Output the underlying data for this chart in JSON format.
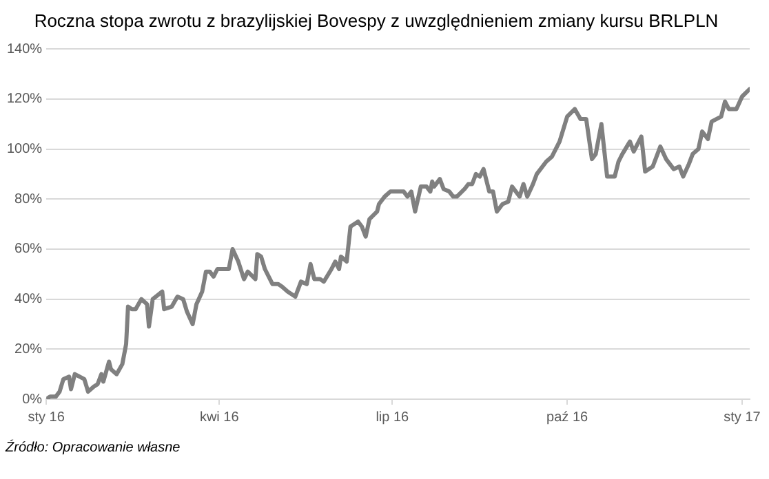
{
  "chart_data": {
    "type": "line",
    "title": "Roczna stopa zwrotu z brazylijskiej Bovespy z uwzględnieniem zmiany kursu BRLPLN",
    "x": [
      "2016-01-01",
      "2016-01-03",
      "2016-01-06",
      "2016-01-08",
      "2016-01-10",
      "2016-01-13",
      "2016-01-14",
      "2016-01-16",
      "2016-01-21",
      "2016-01-23",
      "2016-01-26",
      "2016-01-28",
      "2016-01-30",
      "2016-01-31",
      "2016-02-03",
      "2016-02-04",
      "2016-02-07",
      "2016-02-10",
      "2016-02-12",
      "2016-02-13",
      "2016-02-15",
      "2016-02-17",
      "2016-02-20",
      "2016-02-23",
      "2016-02-24",
      "2016-02-26",
      "2016-03-02",
      "2016-03-03",
      "2016-03-07",
      "2016-03-10",
      "2016-03-13",
      "2016-03-15",
      "2016-03-18",
      "2016-03-20",
      "2016-03-23",
      "2016-03-25",
      "2016-03-27",
      "2016-03-29",
      "2016-03-31",
      "2016-04-03",
      "2016-04-06",
      "2016-04-08",
      "2016-04-11",
      "2016-04-14",
      "2016-04-16",
      "2016-04-20",
      "2016-04-21",
      "2016-04-23",
      "2016-04-25",
      "2016-04-29",
      "2016-05-02",
      "2016-05-04",
      "2016-05-07",
      "2016-05-11",
      "2016-05-14",
      "2016-05-17",
      "2016-05-19",
      "2016-05-21",
      "2016-05-24",
      "2016-05-26",
      "2016-05-30",
      "2016-06-01",
      "2016-06-03",
      "2016-06-04",
      "2016-06-07",
      "2016-06-09",
      "2016-06-13",
      "2016-06-15",
      "2016-06-17",
      "2016-06-19",
      "2016-06-23",
      "2016-06-24",
      "2016-06-27",
      "2016-06-30",
      "2016-07-04",
      "2016-07-07",
      "2016-07-09",
      "2016-07-11",
      "2016-07-13",
      "2016-07-16",
      "2016-07-19",
      "2016-07-21",
      "2016-07-22",
      "2016-07-23",
      "2016-07-26",
      "2016-07-28",
      "2016-07-31",
      "2016-08-02",
      "2016-08-04",
      "2016-08-08",
      "2016-08-10",
      "2016-08-12",
      "2016-08-14",
      "2016-08-16",
      "2016-08-18",
      "2016-08-21",
      "2016-08-23",
      "2016-08-25",
      "2016-08-28",
      "2016-08-31",
      "2016-09-02",
      "2016-09-06",
      "2016-09-08",
      "2016-09-10",
      "2016-09-13",
      "2016-09-15",
      "2016-09-20",
      "2016-09-23",
      "2016-09-27",
      "2016-10-01",
      "2016-10-05",
      "2016-10-08",
      "2016-10-11",
      "2016-10-14",
      "2016-10-16",
      "2016-10-19",
      "2016-10-22",
      "2016-10-26",
      "2016-10-28",
      "2016-10-30",
      "2016-11-03",
      "2016-11-05",
      "2016-11-09",
      "2016-11-11",
      "2016-11-15",
      "2016-11-19",
      "2016-11-22",
      "2016-11-24",
      "2016-11-26",
      "2016-11-29",
      "2016-12-01",
      "2016-12-04",
      "2016-12-06",
      "2016-12-09",
      "2016-12-11",
      "2016-12-14",
      "2016-12-16",
      "2016-12-21",
      "2016-12-23",
      "2016-12-25",
      "2016-12-29",
      "2017-01-01",
      "2017-01-05"
    ],
    "series": [
      {
        "color": "#808080",
        "values": [
          0,
          1,
          1,
          3,
          8,
          9,
          4,
          10,
          8,
          3,
          5,
          6,
          10,
          7,
          15,
          12,
          10,
          14,
          22,
          37,
          36,
          36,
          40,
          38,
          29,
          40,
          43,
          36,
          37,
          41,
          40,
          35,
          30,
          38,
          43,
          51,
          51,
          49,
          52,
          52,
          52,
          60,
          55,
          48,
          51,
          48,
          58,
          57,
          52,
          46,
          46,
          45,
          43,
          41,
          47,
          46,
          54,
          48,
          48,
          47,
          52,
          55,
          52,
          57,
          55,
          69,
          71,
          69,
          65,
          72,
          75,
          78,
          81,
          83,
          83,
          83,
          81,
          83,
          75,
          85,
          85,
          83,
          87,
          85,
          88,
          84,
          83,
          81,
          81,
          84,
          86,
          86,
          90,
          89,
          92,
          83,
          83,
          75,
          78,
          79,
          85,
          81,
          86,
          81,
          86,
          90,
          95,
          97,
          103,
          113,
          116,
          112,
          112,
          96,
          98,
          110,
          89,
          89,
          95,
          98,
          103,
          99,
          105,
          91,
          93,
          101,
          96,
          94,
          92,
          93,
          89,
          94,
          98,
          100,
          107,
          104,
          111,
          113,
          119,
          116,
          116,
          121,
          124
        ]
      }
    ],
    "xlim": [
      "2016-01-01",
      "2017-01-05"
    ],
    "xticks": [
      {
        "value": "2016-01-01",
        "label": "sty 16"
      },
      {
        "value": "2016-04-01",
        "label": "kwi 16"
      },
      {
        "value": "2016-07-01",
        "label": "lip 16"
      },
      {
        "value": "2016-10-01",
        "label": "paź 16"
      },
      {
        "value": "2017-01-01",
        "label": "sty 17"
      }
    ],
    "ylim": [
      0,
      140
    ],
    "yticks": [
      {
        "value": 0,
        "label": "0%"
      },
      {
        "value": 20,
        "label": "20%"
      },
      {
        "value": 40,
        "label": "40%"
      },
      {
        "value": 60,
        "label": "60%"
      },
      {
        "value": 80,
        "label": "80%"
      },
      {
        "value": 100,
        "label": "100%"
      },
      {
        "value": 120,
        "label": "120%"
      },
      {
        "value": 140,
        "label": "140%"
      }
    ],
    "grid": "y",
    "legend": false,
    "marker": "none",
    "line_style": "solid",
    "annotations": [
      "Źródło: Opracowanie własne"
    ]
  }
}
